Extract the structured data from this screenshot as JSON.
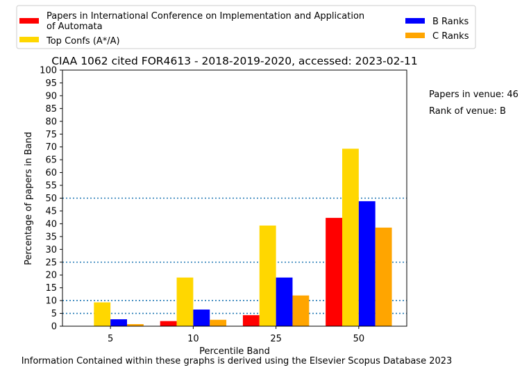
{
  "chart_data": {
    "type": "bar",
    "title": "CIAA 1062 cited FOR4613 - 2018-2019-2020, accessed: 2023-02-11",
    "xlabel": "Percentile Band",
    "ylabel": "Percentage of papers in Band",
    "categories": [
      "5",
      "10",
      "25",
      "50"
    ],
    "ylim": [
      0,
      100
    ],
    "yticks": [
      "0",
      "5",
      "10",
      "15",
      "20",
      "25",
      "30",
      "35",
      "40",
      "45",
      "50",
      "55",
      "60",
      "65",
      "70",
      "75",
      "80",
      "85",
      "90",
      "95",
      "100"
    ],
    "series": [
      {
        "name": "Papers in International Conference on Implementation and Application of Automata",
        "color": "#ff0000",
        "values": [
          0,
          2.0,
          4.3,
          42.3
        ]
      },
      {
        "name": "Top Confs (A*/A)",
        "color": "#ffd700",
        "values": [
          9.3,
          19.0,
          39.3,
          69.3
        ]
      },
      {
        "name": "B Ranks",
        "color": "#0000ff",
        "values": [
          2.7,
          6.5,
          19.0,
          48.8
        ]
      },
      {
        "name": "C Ranks",
        "color": "#ffa500",
        "values": [
          0.8,
          2.5,
          12.0,
          38.5
        ]
      }
    ],
    "reference_lines": [
      5,
      10,
      25,
      50
    ],
    "reference_line_color": "#1f77b4",
    "legend": {
      "placement": "top",
      "line1": "Papers in International Conference on Implementation and Application",
      "line2": "of Automata"
    },
    "annotations": {
      "papers_in_venue": "Papers in venue: 46",
      "rank_of_venue": "Rank of venue: B"
    },
    "footer": "Information Contained within these graphs is derived using the Elsevier Scopus Database 2023"
  }
}
